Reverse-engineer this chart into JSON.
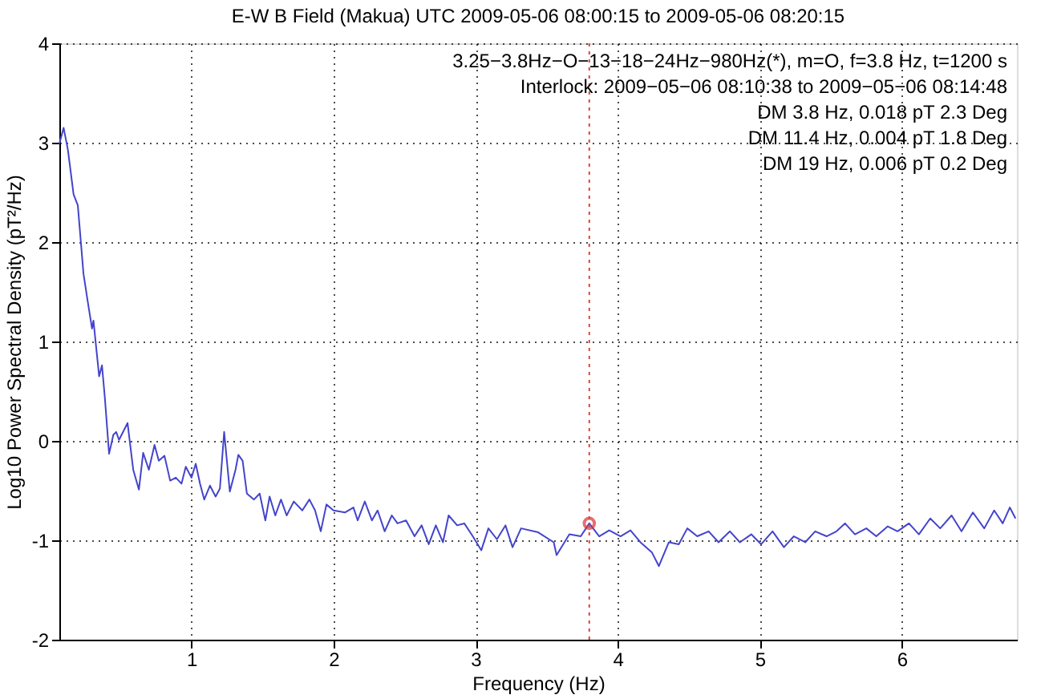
{
  "chart_data": {
    "type": "line",
    "title": "E-W B Field (Makua) UTC 2009-05-06 08:00:15 to 2009-05-06 08:20:15",
    "xlabel": "Frequency (Hz)",
    "ylabel": "Log10 Power Spectral Density (pT²/Hz)",
    "xlim": [
      0.07,
      6.81
    ],
    "xticks": [
      1,
      2,
      3,
      4,
      5,
      6
    ],
    "ylim": [
      -2,
      4
    ],
    "yticks": [
      -2,
      -1,
      0,
      1,
      2,
      3,
      4
    ],
    "grid": true,
    "annotations": [
      "3.25−3.8Hz−O−13−18−24Hz−980Hz(*), m=O, f=3.8 Hz, t=1200 s",
      "Interlock: 2009−05−06 08:10:38 to 2009−05−06 08:14:48",
      "DM 3.8 Hz, 0.018 pT 2.3 Deg",
      "DM 11.4 Hz, 0.004 pT 1.8 Deg",
      "DM 19 Hz, 0.006 pT 0.2 Deg"
    ],
    "ref_lines": [
      {
        "axis": "x",
        "value": 3.8,
        "color": "#dd4444",
        "line_style": "dotted"
      }
    ],
    "series": [
      {
        "color": "#4444cc",
        "line_style": "solid",
        "x": [
          0.07,
          0.1,
          0.13,
          0.17,
          0.2,
          0.24,
          0.27,
          0.3,
          0.31,
          0.35,
          0.37,
          0.39,
          0.42,
          0.45,
          0.47,
          0.49,
          0.55,
          0.59,
          0.63,
          0.66,
          0.7,
          0.74,
          0.77,
          0.81,
          0.85,
          0.89,
          0.93,
          0.96,
          1.0,
          1.03,
          1.06,
          1.09,
          1.13,
          1.17,
          1.2,
          1.23,
          1.27,
          1.31,
          1.33,
          1.36,
          1.39,
          1.44,
          1.48,
          1.52,
          1.55,
          1.59,
          1.63,
          1.67,
          1.72,
          1.78,
          1.83,
          1.87,
          1.91,
          1.95,
          2.0,
          2.08,
          2.14,
          2.17,
          2.22,
          2.27,
          2.31,
          2.36,
          2.41,
          2.45,
          2.51,
          2.57,
          2.62,
          2.67,
          2.72,
          2.77,
          2.81,
          2.87,
          2.92,
          2.98,
          3.04,
          3.09,
          3.15,
          3.21,
          3.26,
          3.32,
          3.44,
          3.55,
          3.57,
          3.66,
          3.74,
          3.8,
          3.87,
          3.94,
          4.02,
          4.09,
          4.16,
          4.24,
          4.29,
          4.36,
          4.43,
          4.49,
          4.56,
          4.64,
          4.71,
          4.79,
          4.86,
          4.94,
          5.01,
          5.09,
          5.17,
          5.24,
          5.32,
          5.39,
          5.47,
          5.54,
          5.6,
          5.67,
          5.75,
          5.82,
          5.9,
          5.97,
          6.05,
          6.12,
          6.2,
          6.27,
          6.35,
          6.42,
          6.5,
          6.58,
          6.65,
          6.71,
          6.76,
          6.8
        ],
        "values": [
          2.99,
          3.15,
          2.93,
          2.48,
          2.37,
          1.68,
          1.4,
          1.13,
          1.21,
          0.65,
          0.76,
          0.44,
          -0.13,
          0.06,
          0.09,
          0.01,
          0.18,
          -0.29,
          -0.49,
          -0.12,
          -0.29,
          -0.04,
          -0.2,
          -0.15,
          -0.4,
          -0.37,
          -0.43,
          -0.26,
          -0.37,
          -0.23,
          -0.43,
          -0.59,
          -0.45,
          -0.56,
          -0.48,
          0.09,
          -0.51,
          -0.29,
          -0.14,
          -0.2,
          -0.53,
          -0.59,
          -0.53,
          -0.8,
          -0.56,
          -0.75,
          -0.59,
          -0.75,
          -0.61,
          -0.7,
          -0.59,
          -0.7,
          -0.91,
          -0.64,
          -0.7,
          -0.72,
          -0.67,
          -0.8,
          -0.61,
          -0.8,
          -0.7,
          -0.91,
          -0.75,
          -0.83,
          -0.8,
          -0.96,
          -0.85,
          -1.04,
          -0.85,
          -1.02,
          -0.75,
          -0.85,
          -0.83,
          -0.96,
          -1.1,
          -0.88,
          -0.99,
          -0.85,
          -1.07,
          -0.88,
          -0.92,
          -1.02,
          -1.15,
          -0.94,
          -0.96,
          -0.83,
          -0.96,
          -0.9,
          -0.96,
          -0.9,
          -1.02,
          -1.12,
          -1.26,
          -1.02,
          -1.04,
          -0.88,
          -0.96,
          -0.91,
          -1.02,
          -0.91,
          -1.02,
          -0.94,
          -1.04,
          -0.91,
          -1.07,
          -0.96,
          -1.02,
          -0.91,
          -0.96,
          -0.91,
          -0.83,
          -0.94,
          -0.88,
          -0.96,
          -0.86,
          -0.91,
          -0.83,
          -0.94,
          -0.78,
          -0.88,
          -0.75,
          -0.91,
          -0.72,
          -0.88,
          -0.7,
          -0.83,
          -0.67,
          -0.78
        ]
      },
      {
        "type": "scatter",
        "color": "#dd3333",
        "marker": "circle",
        "x": [
          3.8
        ],
        "values": [
          -0.83
        ]
      }
    ]
  }
}
